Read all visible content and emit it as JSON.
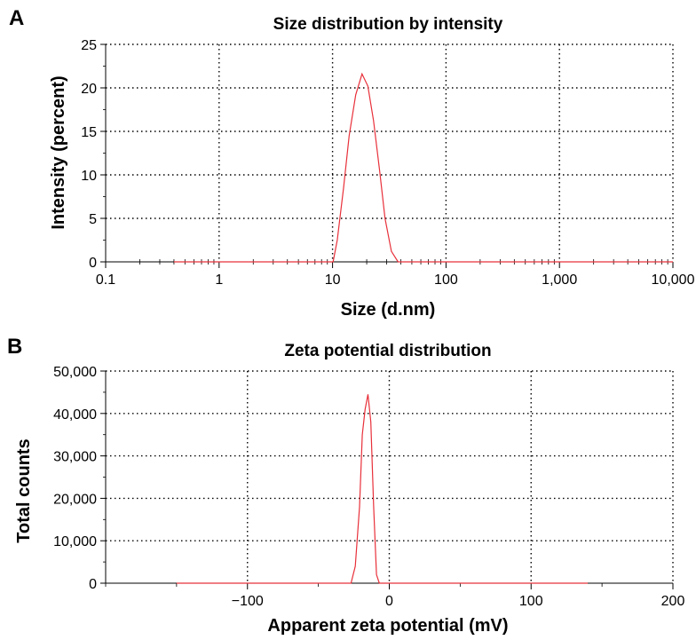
{
  "chart_data": [
    {
      "panel": "A",
      "type": "line",
      "title": "Size distribution by intensity",
      "xlabel": "Size (d.nm)",
      "ylabel": "Intensity (percent)",
      "xscale": "log",
      "xlim": [
        0.1,
        10000
      ],
      "ylim": [
        0,
        25
      ],
      "xticks": [
        0.1,
        1,
        10,
        100,
        1000,
        10000
      ],
      "xtick_labels": [
        "0.1",
        "1",
        "10",
        "100",
        "1,000",
        "10,000"
      ],
      "yticks": [
        0,
        5,
        10,
        15,
        20,
        25
      ],
      "ytick_labels": [
        "0",
        "5",
        "10",
        "15",
        "20",
        "25"
      ],
      "grid": true,
      "line_color": "#e8303a",
      "series": [
        {
          "x": [
            0.4,
            1,
            5,
            10.1,
            11,
            12.5,
            14,
            16,
            18.2,
            20.5,
            23,
            26,
            29,
            33,
            37.8,
            50,
            100,
            1000,
            10000
          ],
          "y": [
            0,
            0,
            0,
            0,
            2.5,
            8.5,
            14.5,
            19.2,
            21.6,
            20.2,
            16.2,
            10.5,
            5.0,
            1.2,
            0,
            0,
            0,
            0,
            0
          ]
        }
      ]
    },
    {
      "panel": "B",
      "type": "line",
      "title": "Zeta potential distribution",
      "xlabel": "Apparent zeta potential (mV)",
      "ylabel": "Total counts",
      "xlim": [
        -200,
        200
      ],
      "ylim": [
        0,
        50000
      ],
      "xticks": [
        -100,
        0,
        100,
        200
      ],
      "xtick_labels": [
        "−100",
        "0",
        "100",
        "200"
      ],
      "yticks": [
        0,
        10000,
        20000,
        30000,
        40000,
        50000
      ],
      "ytick_labels": [
        "0",
        "10,000",
        "20,000",
        "30,000",
        "40,000",
        "50,000"
      ],
      "grid": true,
      "line_color": "#e8303a",
      "series": [
        {
          "x": [
            -150,
            -40,
            -27,
            -24,
            -21,
            -19,
            -17,
            -15,
            -13,
            -11,
            -9,
            -7,
            0,
            140
          ],
          "y": [
            0,
            0,
            0,
            4000,
            18000,
            35000,
            41000,
            44500,
            38000,
            18000,
            2000,
            0,
            0,
            0
          ]
        }
      ]
    }
  ]
}
